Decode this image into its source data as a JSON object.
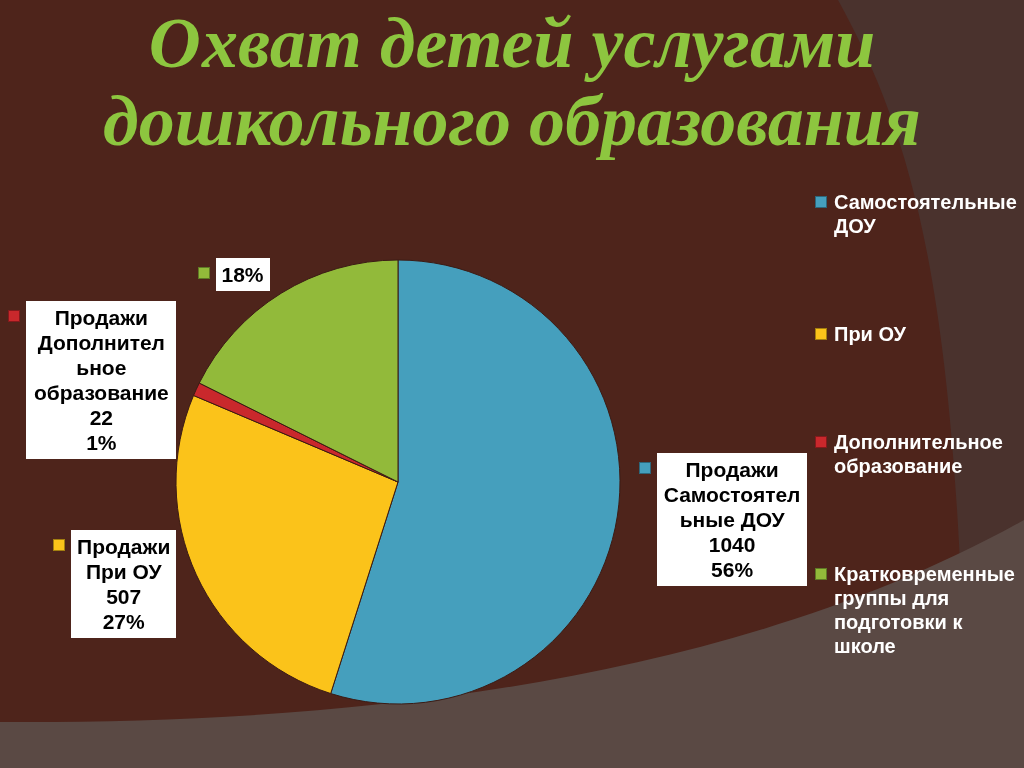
{
  "chart_data": {
    "type": "pie",
    "title": "Охват детей услугами дошкольного образования",
    "categories": [
      "Самостоятельные ДОУ",
      "При ОУ",
      "Дополнительное образование",
      "Кратковременные группы для подготовки к школе"
    ],
    "values": [
      56,
      27,
      1,
      18
    ],
    "colors": [
      "#459fbd",
      "#fbc31a",
      "#c9282c",
      "#92ba3a"
    ],
    "value_labels": [
      "Продажи\nСамостоятельные ДОУ\n1040\n56%",
      "Продажи\nПри ОУ\n507\n27%",
      "Продажи\nДополнительное образование\n22\n1%",
      "18%"
    ],
    "legend": "right"
  }
}
